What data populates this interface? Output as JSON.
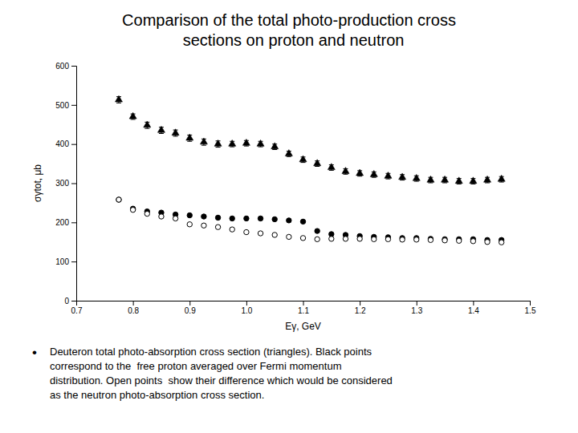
{
  "chart_data": {
    "type": "scatter",
    "title": "Comparison of the total photo-production cross\n  sections on proton and neutron",
    "x_label": "Eγ, GeV",
    "y_label": "σγtot, μb",
    "annotations": [
      "•",
      "Deuteron total photo-absorption cross section (triangles). Black points\ncorrespond to the  free proton averaged over Fermi momentum\ndistribution. Open points  show their difference which would be considered\nas the neutron photo-absorption cross section."
    ],
    "x": [
      0.775,
      0.8,
      0.825,
      0.85,
      0.875,
      0.9,
      0.925,
      0.95,
      0.975,
      1.0,
      1.025,
      1.05,
      1.075,
      1.1,
      1.125,
      1.15,
      1.175,
      1.2,
      1.225,
      1.25,
      1.275,
      1.3,
      1.325,
      1.35,
      1.375,
      1.4,
      1.425,
      1.45
    ],
    "series": [
      {
        "marker": "triangle",
        "color": "#000000",
        "values": [
          513,
          470,
          448,
          435,
          428,
          415,
          405,
          400,
          400,
          402,
          400,
          393,
          375,
          360,
          350,
          340,
          330,
          325,
          322,
          318,
          315,
          312,
          308,
          308,
          305,
          305,
          308,
          310
        ],
        "error": [
          8,
          7,
          8,
          8,
          8,
          8,
          8,
          8,
          7,
          7,
          7,
          7,
          7,
          7,
          7,
          7,
          7,
          7,
          7,
          7,
          7,
          7,
          7,
          7,
          7,
          7,
          7,
          7
        ]
      },
      {
        "marker": "circle",
        "color": "#000000",
        "values": [
          258,
          235,
          228,
          225,
          220,
          218,
          215,
          212,
          210,
          210,
          210,
          208,
          205,
          202,
          178,
          170,
          168,
          165,
          163,
          162,
          160,
          160,
          158,
          157,
          157,
          157,
          155,
          155
        ]
      },
      {
        "marker": "open-circle",
        "color": "#000000",
        "values": [
          258,
          232,
          222,
          215,
          210,
          195,
          192,
          188,
          182,
          175,
          172,
          168,
          163,
          160,
          157,
          158,
          158,
          158,
          157,
          157,
          156,
          156,
          155,
          154,
          153,
          152,
          150,
          149
        ]
      }
    ],
    "xlim": [
      0.7,
      1.5
    ],
    "ylim": [
      0,
      600
    ],
    "xticks": [
      0.7,
      0.8,
      0.9,
      {
        "value": 1.0,
        "label": "1.0"
      },
      1.1,
      1.2,
      1.3,
      1.4,
      1.5
    ],
    "yticks": [
      0,
      100,
      200,
      300,
      400,
      500,
      600
    ],
    "grid": false
  }
}
